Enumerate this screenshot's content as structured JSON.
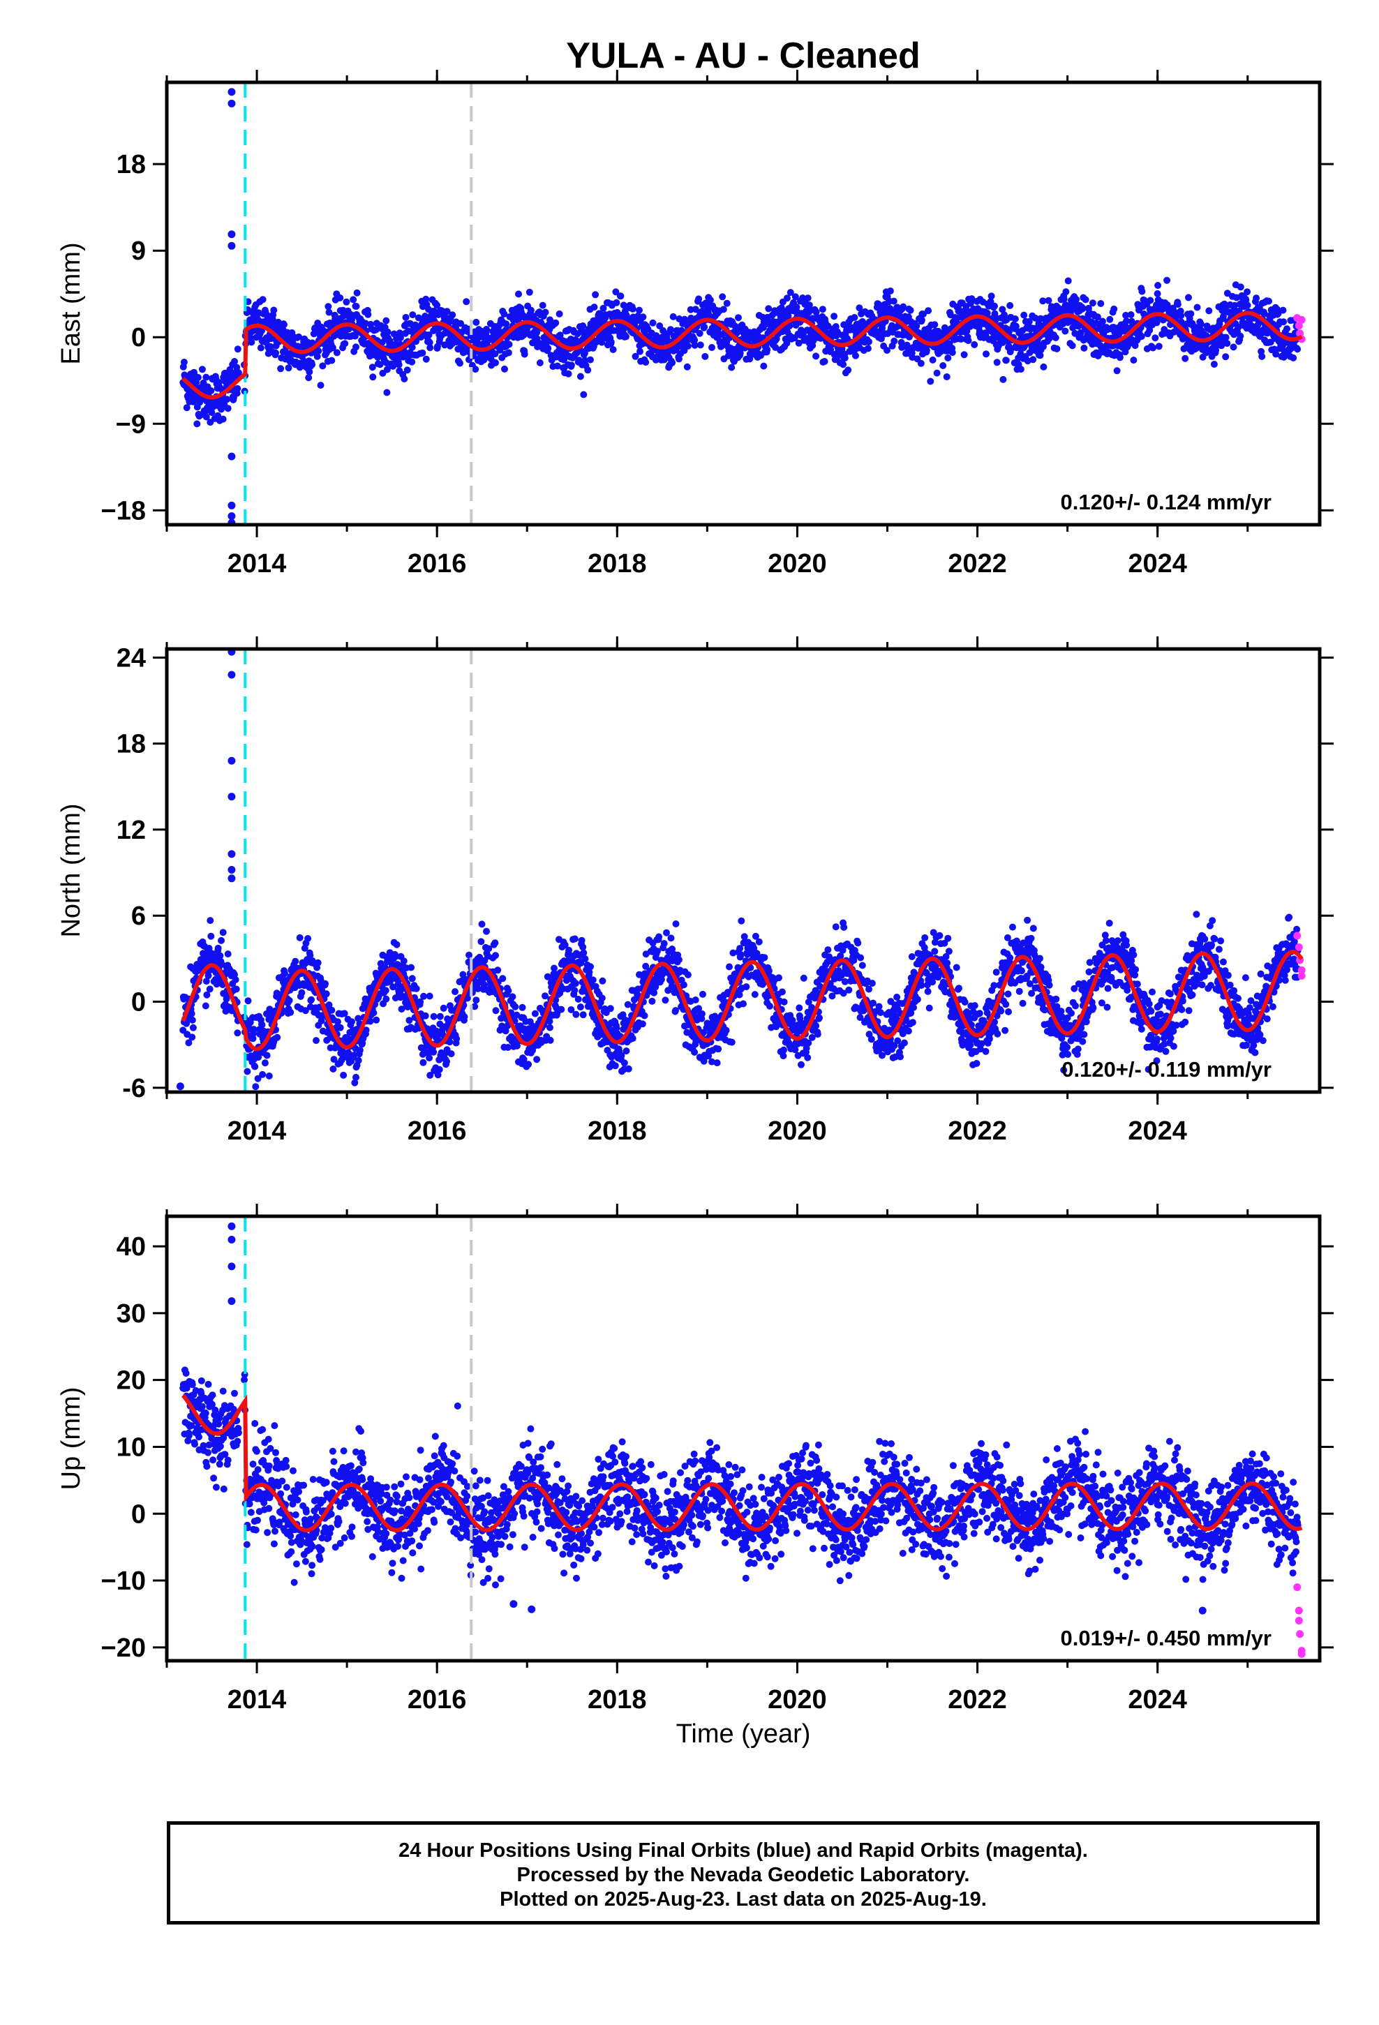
{
  "title": "YULA  - AU - Cleaned",
  "xlabel": "Time (year)",
  "footer": {
    "line1": "24 Hour Positions Using Final Orbits (blue) and Rapid Orbits (magenta).",
    "line2": "Processed by the Nevada Geodetic Laboratory.",
    "line3": "Plotted on 2025-Aug-23. Last data on 2025-Aug-19."
  },
  "colors": {
    "final_orbits": "#1010f0",
    "rapid_orbits": "#ff33ff",
    "model": "#ee1111",
    "equipment_change": "#00e5ee",
    "other_event": "#c8c8c8"
  },
  "chart_data": [
    {
      "type": "scatter",
      "ylabel": "East (mm)",
      "rate_label": "0.120+/- 0.124 mm/yr",
      "x_range": [
        2013.0,
        2025.8
      ],
      "ylim": [
        -19.5,
        26.5
      ],
      "x_ticks": [
        "2014",
        "2016",
        "2018",
        "2020",
        "2022",
        "2024"
      ],
      "y_ticks": [
        "18",
        "9",
        "0",
        "−9",
        "−18"
      ],
      "y_tick_values": [
        18,
        9,
        0,
        -9,
        -18
      ],
      "vlines": [
        {
          "x": 2013.87,
          "kind": "equipment_change"
        },
        {
          "x": 2016.38,
          "kind": "other_event"
        }
      ],
      "model": {
        "offset_before": -4.2,
        "offset_after": 0.4,
        "trend": 0.12,
        "amplitude": 1.4,
        "phase_peak": 0.0,
        "scatter": 1.3
      },
      "outliers": [
        [
          2013.72,
          25.5
        ],
        [
          2013.72,
          24.3
        ],
        [
          2013.72,
          10.7
        ],
        [
          2013.72,
          9.5
        ],
        [
          2013.72,
          -12.4
        ],
        [
          2013.72,
          -17.5
        ],
        [
          2013.72,
          -18.6
        ],
        [
          2013.72,
          -19.3
        ]
      ],
      "rapid_points": [
        [
          2025.55,
          2.0
        ],
        [
          2025.57,
          1.2
        ],
        [
          2025.58,
          0.4
        ],
        [
          2025.6,
          1.8
        ],
        [
          2025.6,
          -0.2
        ]
      ]
    },
    {
      "type": "scatter",
      "ylabel": "North (mm)",
      "rate_label": "0.120+/- 0.119 mm/yr",
      "x_range": [
        2013.0,
        2025.8
      ],
      "ylim": [
        -6.3,
        24.6
      ],
      "x_ticks": [
        "2014",
        "2016",
        "2018",
        "2020",
        "2022",
        "2024"
      ],
      "y_ticks": [
        "24",
        "18",
        "12",
        "6",
        "0",
        "-6"
      ],
      "y_tick_values": [
        24,
        18,
        12,
        6,
        0,
        -6
      ],
      "vlines": [
        {
          "x": 2013.87,
          "kind": "equipment_change"
        },
        {
          "x": 2016.38,
          "kind": "other_event"
        }
      ],
      "model": {
        "offset_before": 0.5,
        "offset_after": 0.0,
        "trend": 0.12,
        "amplitude": 2.7,
        "phase_peak": 0.5,
        "scatter": 1.1
      },
      "outliers": [
        [
          2013.72,
          24.4
        ],
        [
          2013.72,
          22.8
        ],
        [
          2013.72,
          16.8
        ],
        [
          2013.72,
          14.3
        ],
        [
          2013.72,
          10.3
        ],
        [
          2013.72,
          9.2
        ],
        [
          2013.72,
          8.6
        ],
        [
          2013.15,
          -5.9
        ]
      ],
      "rapid_points": [
        [
          2025.55,
          4.6
        ],
        [
          2025.57,
          3.8
        ],
        [
          2025.58,
          2.9
        ],
        [
          2025.6,
          2.2
        ],
        [
          2025.6,
          1.8
        ]
      ]
    },
    {
      "type": "scatter",
      "ylabel": "Up (mm)",
      "rate_label": "0.019+/- 0.450 mm/yr",
      "x_range": [
        2013.0,
        2025.8
      ],
      "ylim": [
        -22.0,
        44.5
      ],
      "x_ticks": [
        "2014",
        "2016",
        "2018",
        "2020",
        "2022",
        "2024"
      ],
      "y_ticks": [
        "40",
        "30",
        "20",
        "10",
        "0",
        "−10",
        "−20"
      ],
      "y_tick_values": [
        40,
        30,
        20,
        10,
        0,
        -10,
        -20
      ],
      "vlines": [
        {
          "x": 2013.87,
          "kind": "equipment_change"
        },
        {
          "x": 2016.38,
          "kind": "other_event"
        }
      ],
      "model": {
        "offset_before": 15.5,
        "offset_after": 1.0,
        "trend": 0.02,
        "amplitude": 3.4,
        "phase_peak": 0.05,
        "scatter": 3.2
      },
      "outliers": [
        [
          2013.72,
          43.0
        ],
        [
          2013.72,
          41.0
        ],
        [
          2013.72,
          37.0
        ],
        [
          2013.72,
          31.8
        ],
        [
          2016.85,
          -13.5
        ],
        [
          2017.05,
          -14.3
        ],
        [
          2024.5,
          -14.5
        ]
      ],
      "rapid_points": [
        [
          2025.55,
          -11.0
        ],
        [
          2025.57,
          -14.5
        ],
        [
          2025.57,
          -16.0
        ],
        [
          2025.58,
          -18.0
        ],
        [
          2025.6,
          -20.5
        ],
        [
          2025.6,
          -21.0
        ]
      ]
    }
  ]
}
